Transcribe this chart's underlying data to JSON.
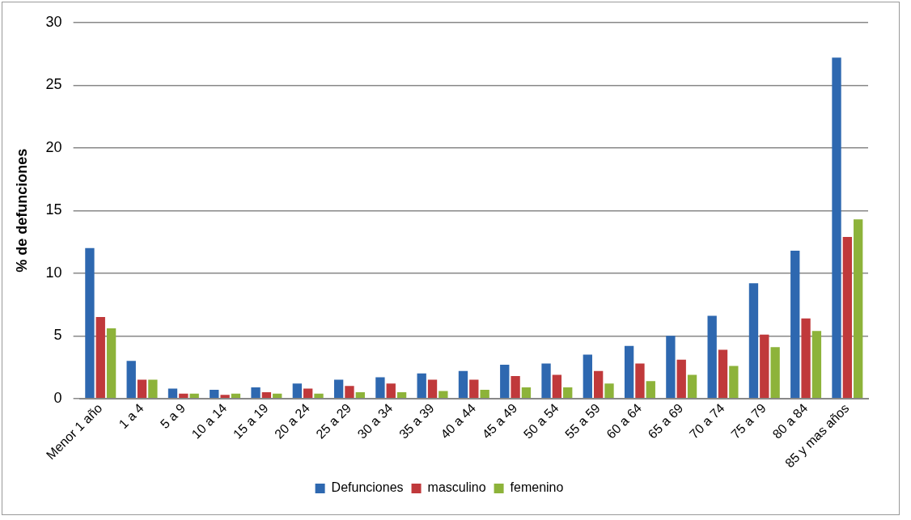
{
  "chart_data": {
    "type": "bar",
    "ylabel": "% de defunciones",
    "categories": [
      "Menor 1 año",
      "1 a 4",
      "5 a 9",
      "10 a 14",
      "15 a 19",
      "20 a 24",
      "25 a 29",
      "30 a 34",
      "35 a 39",
      "40 a 44",
      "45 a 49",
      "50 a 54",
      "55 a 59",
      "60 a 64",
      "65 a 69",
      "70 a 74",
      "75 a 79",
      "80 a 84",
      "85 y mas años"
    ],
    "series": [
      {
        "name": "Defunciones",
        "color": "#2e68b0",
        "values": [
          12.0,
          3.0,
          0.8,
          0.7,
          0.9,
          1.2,
          1.5,
          1.7,
          2.0,
          2.2,
          2.7,
          2.8,
          3.5,
          4.2,
          5.0,
          6.6,
          9.2,
          11.8,
          27.2
        ]
      },
      {
        "name": "masculino",
        "color": "#c0393b",
        "values": [
          6.5,
          1.5,
          0.4,
          0.3,
          0.5,
          0.8,
          1.0,
          1.2,
          1.5,
          1.5,
          1.8,
          1.9,
          2.2,
          2.8,
          3.1,
          3.9,
          5.1,
          6.4,
          12.9
        ]
      },
      {
        "name": "femenino",
        "color": "#8db33a",
        "values": [
          5.6,
          1.5,
          0.4,
          0.4,
          0.4,
          0.4,
          0.5,
          0.5,
          0.6,
          0.7,
          0.9,
          0.9,
          1.2,
          1.4,
          1.9,
          2.6,
          4.1,
          5.4,
          14.3
        ]
      }
    ],
    "ylim": [
      0,
      30
    ],
    "yticks": [
      0,
      5,
      10,
      15,
      20,
      25,
      30
    ],
    "grid": "y",
    "legend": "bottom"
  }
}
